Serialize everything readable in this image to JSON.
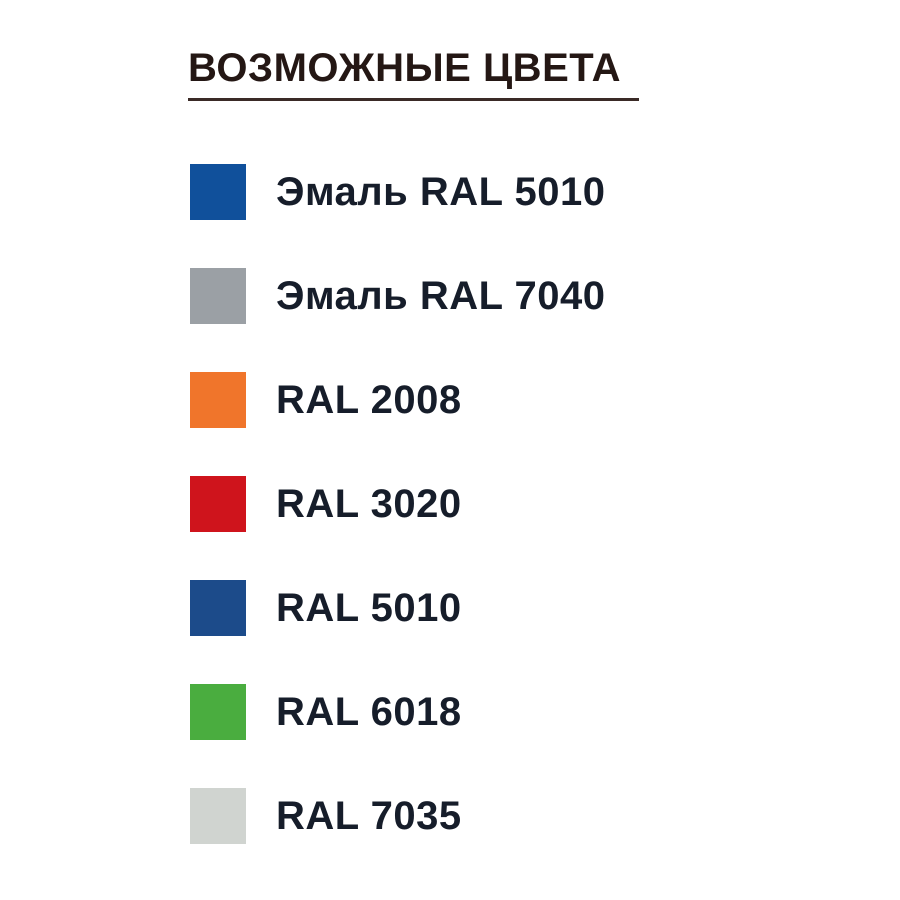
{
  "page": {
    "background_color": "#ffffff",
    "title_color": "#241714",
    "label_color": "#161d2a"
  },
  "title": {
    "text": "ВОЗМОЖНЫЕ ЦВЕТА"
  },
  "legend": {
    "items": [
      {
        "label": "Эмаль RAL 5010",
        "color": "#10509b",
        "color_name": "blue"
      },
      {
        "label": "Эмаль RAL 7040",
        "color": "#9ba0a5",
        "color_name": "gray"
      },
      {
        "label": "RAL 2008",
        "color": "#f0752b",
        "color_name": "orange"
      },
      {
        "label": "RAL 3020",
        "color": "#cf141c",
        "color_name": "red"
      },
      {
        "label": "RAL 5010",
        "color": "#1c4b8a",
        "color_name": "dark-blue"
      },
      {
        "label": "RAL 6018",
        "color": "#4aad3f",
        "color_name": "green"
      },
      {
        "label": "RAL 7035",
        "color": "#d0d4d0",
        "color_name": "light-gray"
      }
    ]
  }
}
